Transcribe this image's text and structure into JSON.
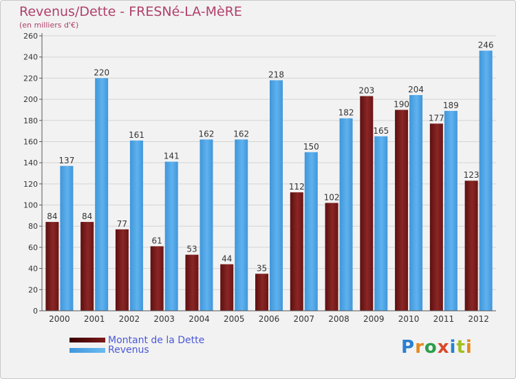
{
  "title": "Revenus/Dette - FRESNé-LA-MèRE",
  "subtitle": "(en milliers d'€)",
  "legend": {
    "debt": "Montant de la Dette",
    "revenue": "Revenus"
  },
  "logo": "Proxiti",
  "colors": {
    "debt": "#7a1a1a",
    "revenue": "#4aa3e6",
    "title": "#b0406a",
    "legend_text": "#4a58d8"
  },
  "chart_data": {
    "type": "bar",
    "categories": [
      "2000",
      "2001",
      "2002",
      "2003",
      "2004",
      "2005",
      "2006",
      "2007",
      "2008",
      "2009",
      "2010",
      "2011",
      "2012"
    ],
    "series": [
      {
        "name": "Montant de la Dette",
        "values": [
          84,
          84,
          77,
          61,
          53,
          44,
          35,
          112,
          102,
          203,
          190,
          177,
          123
        ]
      },
      {
        "name": "Revenus",
        "values": [
          137,
          220,
          161,
          141,
          162,
          162,
          218,
          150,
          182,
          165,
          204,
          189,
          246
        ]
      }
    ],
    "yticks": [
      0,
      20,
      40,
      60,
      80,
      100,
      120,
      140,
      160,
      180,
      200,
      220,
      240,
      260
    ],
    "ylim": [
      0,
      260
    ],
    "grid": true,
    "legend_position": "bottom-left"
  }
}
